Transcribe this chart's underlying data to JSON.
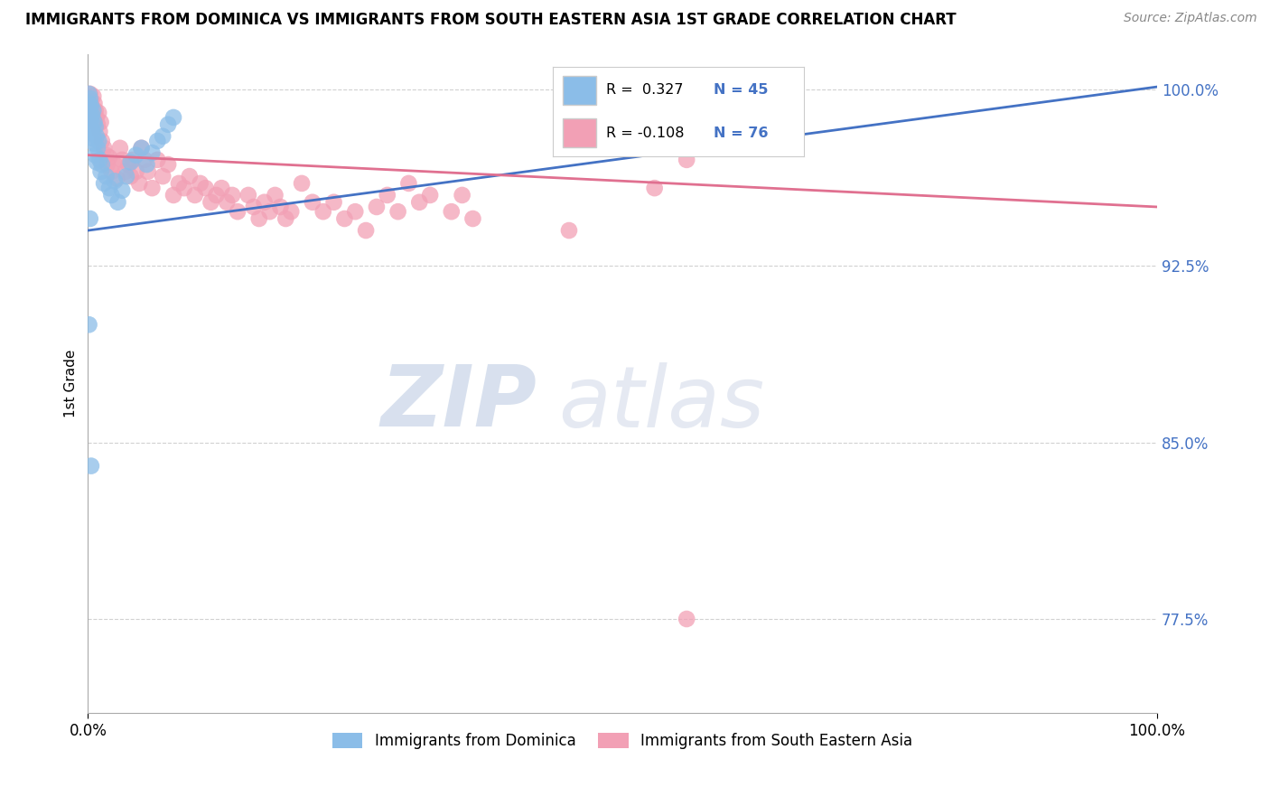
{
  "title": "IMMIGRANTS FROM DOMINICA VS IMMIGRANTS FROM SOUTH EASTERN ASIA 1ST GRADE CORRELATION CHART",
  "source": "Source: ZipAtlas.com",
  "ylabel": "1st Grade",
  "ytick_labels": [
    "77.5%",
    "85.0%",
    "92.5%",
    "100.0%"
  ],
  "ytick_values": [
    0.775,
    0.85,
    0.925,
    1.0
  ],
  "xlim": [
    0.0,
    1.0
  ],
  "ylim": [
    0.735,
    1.015
  ],
  "legend_blue_label": "Immigrants from Dominica",
  "legend_pink_label": "Immigrants from South Eastern Asia",
  "R_blue": 0.327,
  "N_blue": 45,
  "R_pink": -0.108,
  "N_pink": 76,
  "blue_color": "#8BBDE8",
  "pink_color": "#F2A0B5",
  "blue_line_color": "#4472C4",
  "pink_line_color": "#E07090",
  "watermark_zip": "ZIP",
  "watermark_atlas": "atlas",
  "blue_trend_x": [
    0.0,
    1.0
  ],
  "blue_trend_y": [
    0.94,
    1.001
  ],
  "pink_trend_x": [
    0.0,
    1.0
  ],
  "pink_trend_y": [
    0.972,
    0.95
  ],
  "blue_dots": [
    [
      0.001,
      0.998
    ],
    [
      0.001,
      0.994
    ],
    [
      0.002,
      0.996
    ],
    [
      0.001,
      0.992
    ],
    [
      0.001,
      0.988
    ],
    [
      0.002,
      0.99
    ],
    [
      0.002,
      0.985
    ],
    [
      0.003,
      0.993
    ],
    [
      0.003,
      0.987
    ],
    [
      0.003,
      0.982
    ],
    [
      0.004,
      0.989
    ],
    [
      0.004,
      0.983
    ],
    [
      0.005,
      0.991
    ],
    [
      0.005,
      0.979
    ],
    [
      0.006,
      0.986
    ],
    [
      0.006,
      0.977
    ],
    [
      0.007,
      0.984
    ],
    [
      0.007,
      0.972
    ],
    [
      0.008,
      0.98
    ],
    [
      0.008,
      0.969
    ],
    [
      0.009,
      0.975
    ],
    [
      0.01,
      0.978
    ],
    [
      0.011,
      0.97
    ],
    [
      0.012,
      0.965
    ],
    [
      0.013,
      0.968
    ],
    [
      0.015,
      0.96
    ],
    [
      0.017,
      0.963
    ],
    [
      0.02,
      0.958
    ],
    [
      0.022,
      0.955
    ],
    [
      0.025,
      0.961
    ],
    [
      0.028,
      0.952
    ],
    [
      0.032,
      0.957
    ],
    [
      0.036,
      0.963
    ],
    [
      0.04,
      0.969
    ],
    [
      0.045,
      0.972
    ],
    [
      0.05,
      0.975
    ],
    [
      0.055,
      0.968
    ],
    [
      0.06,
      0.973
    ],
    [
      0.065,
      0.978
    ],
    [
      0.07,
      0.98
    ],
    [
      0.075,
      0.985
    ],
    [
      0.08,
      0.988
    ],
    [
      0.002,
      0.945
    ],
    [
      0.001,
      0.9
    ],
    [
      0.003,
      0.84
    ]
  ],
  "pink_dots": [
    [
      0.002,
      0.998
    ],
    [
      0.003,
      0.995
    ],
    [
      0.004,
      0.992
    ],
    [
      0.005,
      0.997
    ],
    [
      0.006,
      0.994
    ],
    [
      0.007,
      0.991
    ],
    [
      0.008,
      0.988
    ],
    [
      0.009,
      0.985
    ],
    [
      0.01,
      0.99
    ],
    [
      0.011,
      0.982
    ],
    [
      0.012,
      0.986
    ],
    [
      0.013,
      0.978
    ],
    [
      0.015,
      0.975
    ],
    [
      0.017,
      0.972
    ],
    [
      0.018,
      0.968
    ],
    [
      0.02,
      0.971
    ],
    [
      0.022,
      0.965
    ],
    [
      0.025,
      0.968
    ],
    [
      0.027,
      0.962
    ],
    [
      0.03,
      0.975
    ],
    [
      0.032,
      0.97
    ],
    [
      0.035,
      0.965
    ],
    [
      0.038,
      0.968
    ],
    [
      0.04,
      0.963
    ],
    [
      0.042,
      0.97
    ],
    [
      0.045,
      0.965
    ],
    [
      0.048,
      0.96
    ],
    [
      0.05,
      0.975
    ],
    [
      0.053,
      0.97
    ],
    [
      0.056,
      0.965
    ],
    [
      0.06,
      0.958
    ],
    [
      0.065,
      0.97
    ],
    [
      0.07,
      0.963
    ],
    [
      0.075,
      0.968
    ],
    [
      0.08,
      0.955
    ],
    [
      0.085,
      0.96
    ],
    [
      0.09,
      0.958
    ],
    [
      0.095,
      0.963
    ],
    [
      0.1,
      0.955
    ],
    [
      0.105,
      0.96
    ],
    [
      0.11,
      0.958
    ],
    [
      0.115,
      0.952
    ],
    [
      0.12,
      0.955
    ],
    [
      0.125,
      0.958
    ],
    [
      0.13,
      0.952
    ],
    [
      0.135,
      0.955
    ],
    [
      0.14,
      0.948
    ],
    [
      0.15,
      0.955
    ],
    [
      0.155,
      0.95
    ],
    [
      0.16,
      0.945
    ],
    [
      0.165,
      0.952
    ],
    [
      0.17,
      0.948
    ],
    [
      0.175,
      0.955
    ],
    [
      0.18,
      0.95
    ],
    [
      0.185,
      0.945
    ],
    [
      0.19,
      0.948
    ],
    [
      0.2,
      0.96
    ],
    [
      0.21,
      0.952
    ],
    [
      0.22,
      0.948
    ],
    [
      0.23,
      0.952
    ],
    [
      0.24,
      0.945
    ],
    [
      0.25,
      0.948
    ],
    [
      0.26,
      0.94
    ],
    [
      0.27,
      0.95
    ],
    [
      0.28,
      0.955
    ],
    [
      0.29,
      0.948
    ],
    [
      0.3,
      0.96
    ],
    [
      0.31,
      0.952
    ],
    [
      0.32,
      0.955
    ],
    [
      0.34,
      0.948
    ],
    [
      0.35,
      0.955
    ],
    [
      0.36,
      0.945
    ],
    [
      0.45,
      0.94
    ],
    [
      0.53,
      0.958
    ],
    [
      0.56,
      0.97
    ],
    [
      0.56,
      0.775
    ]
  ]
}
